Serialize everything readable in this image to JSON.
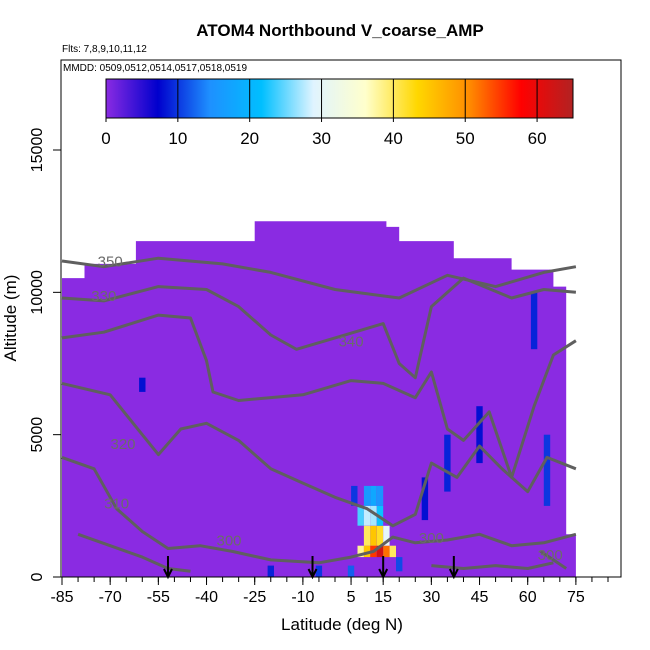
{
  "chart_data": {
    "type": "heatmap",
    "title": "ATOM4 Northbound V_coarse_AMP",
    "flights_label": "Flts: 7,8,9,10,11,12",
    "dates_label": "MMDD: 0509,0512,0514,0517,0518,0519",
    "xlabel": "Latitude (deg N)",
    "ylabel": "Altitude (m)",
    "xlim": [
      -85,
      85
    ],
    "ylim": [
      0,
      17500
    ],
    "x_ticks": [
      "-85",
      "-70",
      "-55",
      "-40",
      "-25",
      "-10",
      "5",
      "15",
      "30",
      "45",
      "60",
      "75"
    ],
    "x_tick_values": [
      -85,
      -70,
      -55,
      -40,
      -25,
      -10,
      5,
      15,
      30,
      45,
      60,
      75
    ],
    "y_ticks": [
      "0",
      "5000",
      "10000",
      "15000"
    ],
    "y_tick_values": [
      0,
      5000,
      10000,
      15000
    ],
    "colorbar": {
      "min": 0,
      "max": 65,
      "ticks": [
        "0",
        "10",
        "20",
        "30",
        "40",
        "50",
        "60"
      ],
      "tick_values": [
        0,
        10,
        20,
        30,
        40,
        50,
        60
      ],
      "colors": [
        "#8a2be2",
        "#0000cd",
        "#1e90ff",
        "#00bfff",
        "#e0f4ff",
        "#ffffcc",
        "#ffd700",
        "#ff8c00",
        "#ff0000",
        "#b22222"
      ]
    },
    "background_value": 0,
    "background_color": "#8a2be2",
    "data_extent": [
      [
        -85,
        0
      ],
      [
        -85,
        10500
      ],
      [
        -78,
        10500
      ],
      [
        -78,
        11000
      ],
      [
        -62,
        11000
      ],
      [
        -62,
        11800
      ],
      [
        -25,
        11800
      ],
      [
        -25,
        12500
      ],
      [
        16,
        12500
      ],
      [
        16,
        12300
      ],
      [
        20,
        12300
      ],
      [
        20,
        11800
      ],
      [
        37,
        11800
      ],
      [
        37,
        11200
      ],
      [
        55,
        11200
      ],
      [
        55,
        10800
      ],
      [
        68,
        10800
      ],
      [
        68,
        10200
      ],
      [
        72,
        10200
      ],
      [
        72,
        1500
      ],
      [
        75,
        1500
      ],
      [
        75,
        0
      ]
    ],
    "high_cells": [
      {
        "lat": 8,
        "alt_range": [
          700,
          1100
        ],
        "value": 38
      },
      {
        "lat": 10,
        "alt_range": [
          700,
          1100
        ],
        "value": 45
      },
      {
        "lat": 12,
        "alt_range": [
          700,
          1100
        ],
        "value": 55
      },
      {
        "lat": 14,
        "alt_range": [
          700,
          1100
        ],
        "value": 62
      },
      {
        "lat": 16,
        "alt_range": [
          700,
          1100
        ],
        "value": 52
      },
      {
        "lat": 18,
        "alt_range": [
          700,
          1100
        ],
        "value": 40
      },
      {
        "lat": 10,
        "alt_range": [
          1100,
          1800
        ],
        "value": 40
      },
      {
        "lat": 12,
        "alt_range": [
          1100,
          1800
        ],
        "value": 45
      },
      {
        "lat": 14,
        "alt_range": [
          1100,
          1800
        ],
        "value": 42
      },
      {
        "lat": 16,
        "alt_range": [
          1100,
          1800
        ],
        "value": 30
      },
      {
        "lat": 8,
        "alt_range": [
          1800,
          2500
        ],
        "value": 24
      },
      {
        "lat": 10,
        "alt_range": [
          1800,
          2500
        ],
        "value": 28
      },
      {
        "lat": 12,
        "alt_range": [
          1800,
          2500
        ],
        "value": 27
      },
      {
        "lat": 14,
        "alt_range": [
          1800,
          2500
        ],
        "value": 22
      },
      {
        "lat": 10,
        "alt_range": [
          2500,
          3200
        ],
        "value": 16
      },
      {
        "lat": 12,
        "alt_range": [
          2500,
          3200
        ],
        "value": 18
      },
      {
        "lat": 14,
        "alt_range": [
          2500,
          3200
        ],
        "value": 15
      },
      {
        "lat": 6,
        "alt_range": [
          2500,
          3200
        ],
        "value": 10
      },
      {
        "lat": -20,
        "alt_range": [
          0,
          400
        ],
        "value": 9
      },
      {
        "lat": -5,
        "alt_range": [
          0,
          400
        ],
        "value": 10
      },
      {
        "lat": 5,
        "alt_range": [
          0,
          400
        ],
        "value": 12
      },
      {
        "lat": 20,
        "alt_range": [
          200,
          700
        ],
        "value": 11
      },
      {
        "lat": 28,
        "alt_range": [
          2000,
          3500
        ],
        "value": 8
      },
      {
        "lat": 35,
        "alt_range": [
          3000,
          5000
        ],
        "value": 9
      },
      {
        "lat": 45,
        "alt_range": [
          4000,
          6000
        ],
        "value": 8
      },
      {
        "lat": 62,
        "alt_range": [
          8000,
          10000
        ],
        "value": 9
      },
      {
        "lat": 66,
        "alt_range": [
          2500,
          5000
        ],
        "value": 10
      },
      {
        "lat": -60,
        "alt_range": [
          6500,
          7000
        ],
        "value": 8
      }
    ],
    "contours": [
      {
        "label": "350",
        "label_at": [
          -70,
          10900
        ],
        "points": [
          [
            -85,
            11100
          ],
          [
            -72,
            10900
          ],
          [
            -55,
            11200
          ],
          [
            -35,
            11000
          ],
          [
            -20,
            10700
          ],
          [
            0,
            10100
          ],
          [
            20,
            9800
          ],
          [
            35,
            10600
          ],
          [
            50,
            10200
          ],
          [
            65,
            10700
          ],
          [
            75,
            10900
          ]
        ]
      },
      {
        "label": "330",
        "label_at": [
          -72,
          9700
        ],
        "points": [
          [
            -85,
            9800
          ],
          [
            -72,
            9700
          ],
          [
            -55,
            10200
          ],
          [
            -40,
            10100
          ],
          [
            -30,
            9500
          ],
          [
            -20,
            8500
          ],
          [
            -12,
            8000
          ],
          [
            0,
            8400
          ],
          [
            15,
            8900
          ],
          [
            20,
            7500
          ],
          [
            25,
            7000
          ],
          [
            30,
            9500
          ],
          [
            40,
            10500
          ],
          [
            55,
            9800
          ],
          [
            65,
            10100
          ],
          [
            75,
            10000
          ]
        ]
      },
      {
        "label": "340",
        "label_at": [
          5,
          8100
        ],
        "points": [
          [
            -85,
            8400
          ],
          [
            -72,
            8600
          ],
          [
            -55,
            9200
          ],
          [
            -45,
            9100
          ],
          [
            -40,
            7600
          ],
          [
            -38,
            6500
          ],
          [
            -30,
            6200
          ],
          [
            -10,
            6400
          ],
          [
            5,
            6900
          ],
          [
            15,
            6800
          ],
          [
            25,
            6300
          ],
          [
            30,
            7200
          ],
          [
            35,
            5200
          ],
          [
            40,
            4800
          ],
          [
            48,
            5800
          ],
          [
            55,
            3500
          ],
          [
            62,
            6000
          ],
          [
            68,
            7800
          ],
          [
            75,
            8300
          ]
        ]
      },
      {
        "label": "320",
        "label_at": [
          -66,
          4500
        ],
        "points": [
          [
            -85,
            6800
          ],
          [
            -70,
            6400
          ],
          [
            -60,
            5000
          ],
          [
            -55,
            4300
          ],
          [
            -48,
            5200
          ],
          [
            -40,
            5400
          ],
          [
            -30,
            4800
          ],
          [
            -20,
            3800
          ],
          [
            -10,
            3300
          ],
          [
            0,
            2800
          ],
          [
            10,
            2400
          ],
          [
            18,
            1800
          ],
          [
            25,
            2200
          ],
          [
            30,
            4000
          ],
          [
            38,
            3500
          ],
          [
            45,
            4600
          ],
          [
            52,
            3800
          ],
          [
            60,
            3000
          ],
          [
            66,
            4200
          ],
          [
            75,
            3800
          ]
        ]
      },
      {
        "label": "310",
        "label_at": [
          -68,
          2400
        ],
        "points": [
          [
            -85,
            4200
          ],
          [
            -75,
            3800
          ],
          [
            -68,
            2400
          ],
          [
            -60,
            1600
          ],
          [
            -52,
            1000
          ],
          [
            -42,
            1100
          ],
          [
            -32,
            900
          ],
          [
            -20,
            600
          ],
          [
            -5,
            500
          ],
          [
            5,
            700
          ],
          [
            12,
            900
          ],
          [
            18,
            1400
          ],
          [
            25,
            1200
          ],
          [
            35,
            1300
          ],
          [
            45,
            1500
          ],
          [
            55,
            1100
          ],
          [
            65,
            1200
          ],
          [
            75,
            1500
          ]
        ]
      },
      {
        "label": "300",
        "label_at": [
          -33,
          1100
        ],
        "points": [
          [
            -80,
            1500
          ],
          [
            -70,
            1100
          ],
          [
            -60,
            700
          ],
          [
            -52,
            300
          ],
          [
            -45,
            200
          ]
        ]
      },
      {
        "label": "300",
        "label_at": [
          30,
          1200
        ],
        "points": [
          [
            30,
            400
          ],
          [
            40,
            300
          ],
          [
            50,
            400
          ],
          [
            60,
            300
          ],
          [
            68,
            500
          ]
        ]
      },
      {
        "label": "300",
        "label_at": [
          67,
          600
        ],
        "points": [
          [
            64,
            900
          ],
          [
            68,
            600
          ],
          [
            72,
            300
          ]
        ]
      }
    ],
    "arrows_lat": [
      -52,
      -7,
      15,
      37
    ],
    "grid": false
  }
}
